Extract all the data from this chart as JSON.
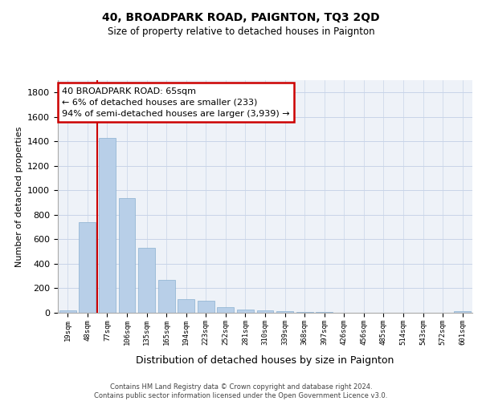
{
  "title": "40, BROADPARK ROAD, PAIGNTON, TQ3 2QD",
  "subtitle": "Size of property relative to detached houses in Paignton",
  "xlabel": "Distribution of detached houses by size in Paignton",
  "ylabel": "Number of detached properties",
  "categories": [
    "19sqm",
    "48sqm",
    "77sqm",
    "106sqm",
    "135sqm",
    "165sqm",
    "194sqm",
    "223sqm",
    "252sqm",
    "281sqm",
    "310sqm",
    "339sqm",
    "368sqm",
    "397sqm",
    "426sqm",
    "456sqm",
    "485sqm",
    "514sqm",
    "543sqm",
    "572sqm",
    "601sqm"
  ],
  "values": [
    22,
    740,
    1430,
    940,
    530,
    270,
    110,
    100,
    45,
    28,
    22,
    12,
    8,
    5,
    3,
    2,
    1,
    0,
    0,
    0,
    13
  ],
  "bar_color": "#b8cfe8",
  "bar_edgecolor": "#8ab0d0",
  "vline_x_index": 2,
  "vline_color": "#cc0000",
  "annotation_text": "40 BROADPARK ROAD: 65sqm\n← 6% of detached houses are smaller (233)\n94% of semi-detached houses are larger (3,939) →",
  "annotation_box_color": "#ffffff",
  "annotation_box_edgecolor": "#cc0000",
  "ylim": [
    0,
    1900
  ],
  "yticks": [
    0,
    200,
    400,
    600,
    800,
    1000,
    1200,
    1400,
    1600,
    1800
  ],
  "grid_color": "#c8d4e8",
  "background_color": "#eef2f8",
  "footnote": "Contains HM Land Registry data © Crown copyright and database right 2024.\nContains public sector information licensed under the Open Government Licence v3.0."
}
